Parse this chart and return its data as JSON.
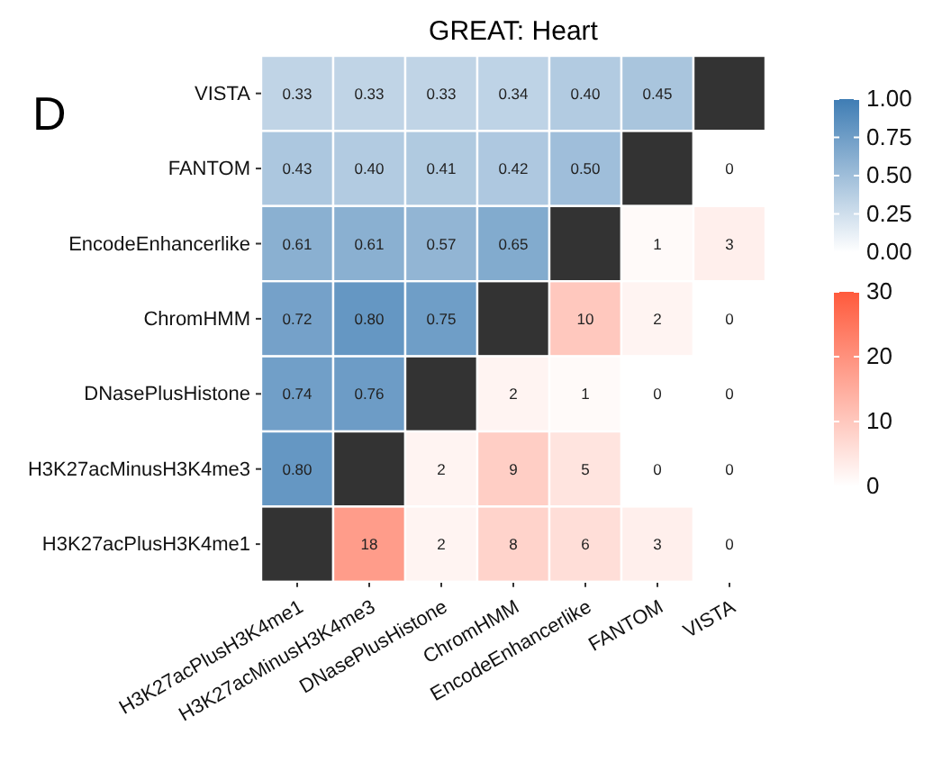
{
  "chart_data": [
    {
      "type": "heatmap",
      "title": "GREAT: Heart",
      "annotations": [
        "D"
      ],
      "categories": [
        "H3K27acPlusH3K4me1",
        "H3K27acMinusH3K4me3",
        "DNasePlusHistone",
        "ChromHMM",
        "EncodeEnhancerlike",
        "FANTOM",
        "VISTA"
      ],
      "y_categories": [
        "VISTA",
        "FANTOM",
        "EncodeEnhancerlike",
        "ChromHMM",
        "DNasePlusHistone",
        "H3K27acMinusH3K4me3",
        "H3K27acPlusH3K4me1"
      ],
      "cells": [
        [
          0.33,
          0.33,
          0.33,
          0.34,
          0.4,
          0.45,
          null
        ],
        [
          0.43,
          0.4,
          0.41,
          0.42,
          0.5,
          null,
          null
        ],
        [
          0.61,
          0.61,
          0.57,
          0.65,
          null,
          null,
          null
        ],
        [
          0.72,
          0.8,
          0.75,
          null,
          null,
          null,
          null
        ],
        [
          0.74,
          0.76,
          null,
          null,
          null,
          null,
          null
        ],
        [
          0.8,
          null,
          null,
          null,
          null,
          null,
          null
        ],
        [
          null,
          null,
          null,
          null,
          null,
          null,
          null
        ]
      ],
      "cell_labels": [
        [
          "0.33",
          "0.33",
          "0.33",
          "0.34",
          "0.40",
          "0.45",
          null
        ],
        [
          "0.43",
          "0.40",
          "0.41",
          "0.42",
          "0.50",
          null,
          null
        ],
        [
          "0.61",
          "0.61",
          "0.57",
          "0.65",
          null,
          null,
          null
        ],
        [
          "0.72",
          "0.80",
          "0.75",
          null,
          null,
          null,
          null
        ],
        [
          "0.74",
          "0.76",
          null,
          null,
          null,
          null,
          null
        ],
        [
          "0.80",
          null,
          null,
          null,
          null,
          null,
          null
        ],
        [
          null,
          null,
          null,
          null,
          null,
          null,
          null
        ]
      ],
      "clim": [
        0,
        1
      ],
      "cticks": [
        {
          "value": 0,
          "label": "0.00"
        },
        {
          "value": 0.25,
          "label": "0.25"
        },
        {
          "value": 0.5,
          "label": "0.50"
        },
        {
          "value": 0.75,
          "label": "0.75"
        },
        {
          "value": 1,
          "label": "1.00"
        }
      ]
    },
    {
      "type": "heatmap",
      "tick_labels": false,
      "data_labels": true,
      "categories": [
        "H3K27acPlusH3K4me1",
        "H3K27acMinusH3K4me3",
        "DNasePlusHistone",
        "ChromHMM",
        "EncodeEnhancerlike",
        "FANTOM",
        "VISTA"
      ],
      "y_categories": [
        "VISTA",
        "FANTOM",
        "EncodeEnhancerlike",
        "ChromHMM",
        "DNasePlusHistone",
        "H3K27acMinusH3K4me3",
        "H3K27acPlusH3K4me1"
      ],
      "cells": [
        [
          null,
          null,
          null,
          null,
          null,
          null,
          null
        ],
        [
          null,
          null,
          null,
          null,
          null,
          null,
          0
        ],
        [
          null,
          null,
          null,
          null,
          null,
          1,
          3
        ],
        [
          null,
          null,
          null,
          null,
          10,
          2,
          0
        ],
        [
          null,
          null,
          null,
          2,
          1,
          0,
          0
        ],
        [
          null,
          null,
          2,
          9,
          5,
          0,
          0
        ],
        [
          null,
          18,
          2,
          8,
          6,
          3,
          0
        ]
      ],
      "clim": [
        0,
        30
      ],
      "cticks": [
        0,
        10,
        20,
        30
      ]
    }
  ]
}
